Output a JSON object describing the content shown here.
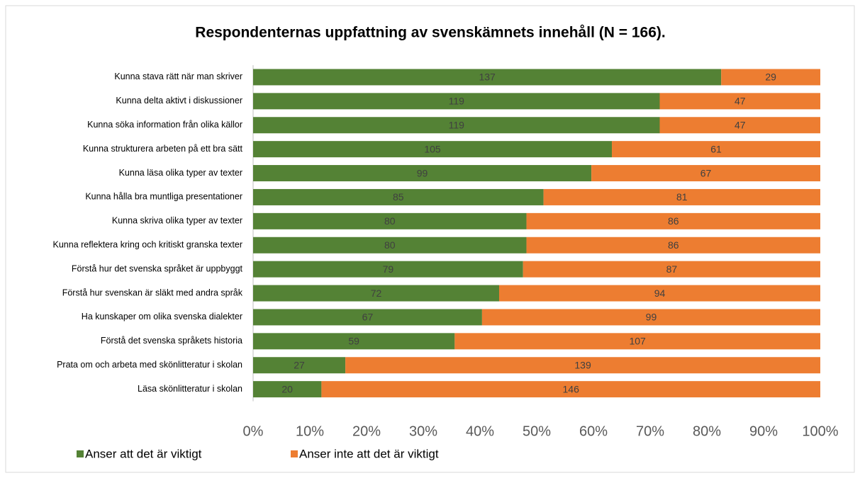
{
  "chart_data": {
    "type": "bar",
    "orientation": "horizontal",
    "stacking": "percent",
    "title": "Respondenternas uppfattning av svenskämnets innehåll (N = 166).",
    "categories": [
      "Kunna stava rätt när man skriver",
      "Kunna delta aktivt i diskussioner",
      "Kunna söka information från olika källor",
      "Kunna strukturera arbeten på ett bra sätt",
      "Kunna läsa olika typer av texter",
      "Kunna hålla bra muntliga presentationer",
      "Kunna skriva olika typer av texter",
      "Kunna reflektera kring och kritiskt granska texter",
      "Förstå hur det svenska språket är uppbyggt",
      "Förstå hur svenskan är släkt med andra språk",
      "Ha kunskaper om olika svenska dialekter",
      "Förstå det svenska språkets historia",
      "Prata om och arbeta med skönlitteratur i skolan",
      "Läsa skönlitteratur i skolan"
    ],
    "series": [
      {
        "name": "Anser att det är viktigt",
        "color": "#548235",
        "values": [
          137,
          119,
          119,
          105,
          99,
          85,
          80,
          80,
          79,
          72,
          67,
          59,
          27,
          20
        ]
      },
      {
        "name": "Anser inte att det är viktigt",
        "color": "#ed7d31",
        "values": [
          29,
          47,
          47,
          61,
          67,
          81,
          86,
          86,
          87,
          94,
          99,
          107,
          139,
          146
        ]
      }
    ],
    "xlim": [
      0,
      100
    ],
    "xticks": [
      {
        "value": 0,
        "label": "0%"
      },
      {
        "value": 10,
        "label": "10%"
      },
      {
        "value": 20,
        "label": "20%"
      },
      {
        "value": 30,
        "label": "30%"
      },
      {
        "value": 40,
        "label": "40%"
      },
      {
        "value": 50,
        "label": "50%"
      },
      {
        "value": 60,
        "label": "60%"
      },
      {
        "value": 70,
        "label": "70%"
      },
      {
        "value": 80,
        "label": "80%"
      },
      {
        "value": 90,
        "label": "90%"
      },
      {
        "value": 100,
        "label": "100%"
      }
    ],
    "legend": "bottom-left"
  }
}
